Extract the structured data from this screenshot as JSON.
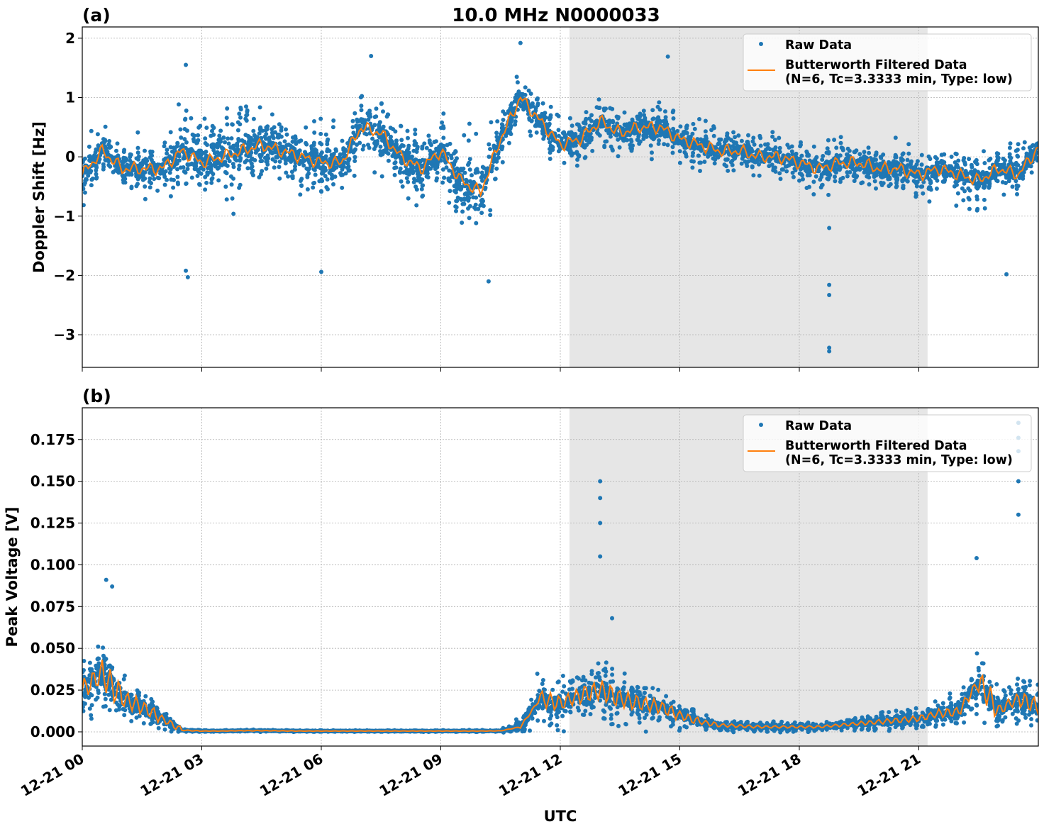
{
  "title": "10.0 MHz N0000033",
  "colors": {
    "raw": "#1f77b4",
    "filtered": "#ff7f0e",
    "shade": "#e6e6e6",
    "grid": "#b0b0b0"
  },
  "chart_data": [
    {
      "type": "scatter",
      "panel_label": "(a)",
      "ylabel": "Doppler Shift [Hz]",
      "xlabel": "",
      "xlim_hours": [
        0,
        24
      ],
      "ylim": [
        -3.55,
        2.19
      ],
      "yticks": [
        2,
        1,
        0,
        -1,
        -2,
        -3
      ],
      "ytick_labels": [
        "2",
        "1",
        "0",
        "−1",
        "−2",
        "−3"
      ],
      "grid": true,
      "shaded_interval_hours": [
        12.23,
        21.22
      ],
      "legend": {
        "placement": "top-right",
        "entries": [
          "Raw Data",
          "Butterworth Filtered Data",
          "(N=6, Tc=3.3333 min, Type: low)"
        ]
      },
      "x_hours": [
        0,
        0.5,
        1,
        1.5,
        2,
        2.5,
        3,
        3.5,
        4,
        4.5,
        5,
        5.5,
        6,
        6.5,
        7,
        7.5,
        8,
        8.5,
        9,
        9.5,
        10,
        10.5,
        11,
        11.5,
        12,
        12.5,
        13,
        13.5,
        14,
        14.5,
        15,
        15.5,
        16,
        16.5,
        17,
        17.5,
        18,
        18.5,
        19,
        19.5,
        20,
        20.5,
        21,
        21.5,
        22,
        22.5,
        23,
        23.5,
        24
      ],
      "series": [
        {
          "name": "Butterworth Filtered Data",
          "values": [
            -0.3,
            0.1,
            -0.2,
            -0.2,
            -0.2,
            0.1,
            -0.1,
            0.0,
            0.1,
            0.2,
            0.1,
            0.0,
            -0.1,
            -0.1,
            0.5,
            0.4,
            0.0,
            -0.2,
            0.1,
            -0.4,
            -0.6,
            0.3,
            1.0,
            0.6,
            0.2,
            0.3,
            0.6,
            0.4,
            0.5,
            0.5,
            0.3,
            0.2,
            0.1,
            0.1,
            0.0,
            0.0,
            -0.1,
            -0.2,
            -0.1,
            -0.1,
            -0.2,
            -0.2,
            -0.3,
            -0.2,
            -0.3,
            -0.4,
            -0.2,
            -0.3,
            0.15
          ]
        },
        {
          "name": "Raw Data",
          "spread": [
            0.45,
            0.4,
            0.35,
            0.35,
            0.4,
            0.7,
            0.7,
            0.7,
            0.65,
            0.6,
            0.5,
            0.5,
            0.5,
            0.55,
            0.6,
            0.55,
            0.5,
            0.5,
            0.55,
            0.7,
            0.75,
            0.5,
            0.35,
            0.3,
            0.35,
            0.4,
            0.4,
            0.35,
            0.35,
            0.35,
            0.35,
            0.35,
            0.35,
            0.35,
            0.35,
            0.35,
            0.35,
            0.4,
            0.35,
            0.35,
            0.35,
            0.35,
            0.35,
            0.35,
            0.4,
            0.5,
            0.4,
            0.4,
            0.3
          ]
        }
      ],
      "outliers": [
        [
          2.6,
          1.55
        ],
        [
          2.65,
          -2.03
        ],
        [
          2.6,
          -1.92
        ],
        [
          6.0,
          -1.94
        ],
        [
          7.25,
          1.7
        ],
        [
          10.2,
          -2.1
        ],
        [
          11.0,
          1.92
        ],
        [
          14.7,
          1.69
        ],
        [
          18.75,
          -3.28
        ],
        [
          18.75,
          -3.22
        ],
        [
          18.75,
          -2.33
        ],
        [
          18.75,
          -2.16
        ],
        [
          18.75,
          -1.2
        ],
        [
          23.2,
          -1.98
        ]
      ]
    },
    {
      "type": "scatter",
      "panel_label": "(b)",
      "ylabel": "Peak Voltage [V]",
      "xlabel": "UTC",
      "xlim_hours": [
        0,
        24
      ],
      "ylim": [
        -0.0085,
        0.194
      ],
      "yticks": [
        0,
        0.025,
        0.05,
        0.075,
        0.1,
        0.125,
        0.15,
        0.175
      ],
      "ytick_labels": [
        "0.000",
        "0.025",
        "0.050",
        "0.075",
        "0.100",
        "0.125",
        "0.150",
        "0.175"
      ],
      "xtick_labels": [
        "12-21 00",
        "12-21 03",
        "12-21 06",
        "12-21 09",
        "12-21 12",
        "12-21 15",
        "12-21 18",
        "12-21 21"
      ],
      "grid": true,
      "shaded_interval_hours": [
        12.23,
        21.22
      ],
      "legend": {
        "placement": "top-right",
        "entries": [
          "Raw Data",
          "Butterworth Filtered Data",
          "(N=6, Tc=3.3333 min, Type: low)"
        ]
      },
      "x_hours": [
        0,
        0.5,
        1,
        1.5,
        2,
        2.5,
        3,
        3.5,
        4,
        4.5,
        5,
        5.5,
        6,
        6.5,
        7,
        7.5,
        8,
        8.5,
        9,
        9.5,
        10,
        10.5,
        11,
        11.5,
        12,
        12.5,
        13,
        13.5,
        14,
        14.5,
        15,
        15.5,
        16,
        16.5,
        17,
        17.5,
        18,
        18.5,
        19,
        19.5,
        20,
        20.5,
        21,
        21.5,
        22,
        22.5,
        23,
        23.5,
        24
      ],
      "series": [
        {
          "name": "Butterworth Filtered Data",
          "values": [
            0.025,
            0.035,
            0.02,
            0.015,
            0.008,
            0.001,
            0.0005,
            0.0005,
            0.0007,
            0.0007,
            0.0006,
            0.0005,
            0.0005,
            0.0005,
            0.0005,
            0.0005,
            0.0005,
            0.0005,
            0.0005,
            0.0005,
            0.0005,
            0.0006,
            0.003,
            0.02,
            0.017,
            0.022,
            0.025,
            0.02,
            0.017,
            0.015,
            0.01,
            0.006,
            0.004,
            0.0035,
            0.003,
            0.003,
            0.003,
            0.003,
            0.004,
            0.005,
            0.006,
            0.007,
            0.008,
            0.011,
            0.012,
            0.03,
            0.013,
            0.02,
            0.015
          ]
        },
        {
          "name": "Raw Data",
          "spread": [
            0.015,
            0.02,
            0.013,
            0.01,
            0.007,
            0.001,
            0.0004,
            0.0004,
            0.0005,
            0.0005,
            0.0004,
            0.0004,
            0.0004,
            0.0004,
            0.0004,
            0.0004,
            0.0004,
            0.0004,
            0.0004,
            0.0004,
            0.0004,
            0.0005,
            0.004,
            0.015,
            0.012,
            0.016,
            0.02,
            0.015,
            0.012,
            0.01,
            0.007,
            0.004,
            0.003,
            0.0025,
            0.0025,
            0.0025,
            0.0025,
            0.0025,
            0.003,
            0.004,
            0.005,
            0.005,
            0.006,
            0.008,
            0.01,
            0.02,
            0.01,
            0.015,
            0.01
          ]
        }
      ],
      "outliers": [
        [
          0.6,
          0.091
        ],
        [
          0.75,
          0.087
        ],
        [
          13.0,
          0.15
        ],
        [
          13.0,
          0.14
        ],
        [
          13.0,
          0.125
        ],
        [
          13.0,
          0.105
        ],
        [
          13.3,
          0.068
        ],
        [
          22.45,
          0.104
        ],
        [
          23.5,
          0.185
        ],
        [
          23.5,
          0.176
        ],
        [
          23.5,
          0.168
        ],
        [
          23.5,
          0.15
        ],
        [
          23.5,
          0.13
        ]
      ]
    }
  ]
}
